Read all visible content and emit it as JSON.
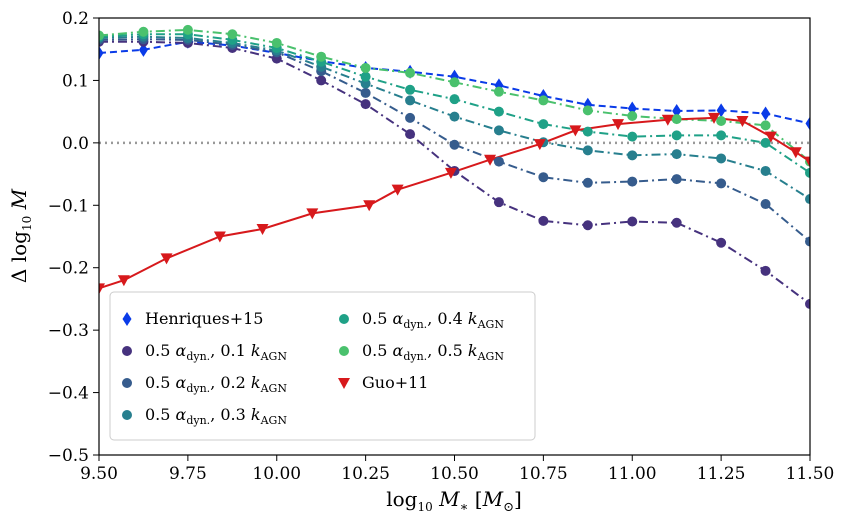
{
  "chart_data": {
    "type": "line",
    "title": "",
    "xlabel": "log₁₀ M∗ [M☉]",
    "ylabel": "Δ log₁₀ M",
    "xlim": [
      9.5,
      11.5
    ],
    "ylim": [
      -0.5,
      0.2
    ],
    "xticks": [
      9.5,
      9.75,
      10.0,
      10.25,
      10.5,
      10.75,
      11.0,
      11.25,
      11.5
    ],
    "xtick_labels": [
      "9.50",
      "9.75",
      "10.00",
      "10.25",
      "10.50",
      "10.75",
      "11.00",
      "11.25",
      "11.50"
    ],
    "yticks": [
      -0.5,
      -0.4,
      -0.3,
      -0.2,
      -0.1,
      0.0,
      0.1,
      0.2
    ],
    "ytick_labels": [
      "−0.5",
      "−0.4",
      "−0.3",
      "−0.2",
      "−0.1",
      "0.0",
      "0.1",
      "0.2"
    ],
    "reference_line": {
      "y": 0.0,
      "style": "dotted",
      "color": "#999999"
    },
    "legend": {
      "location": "lower-left",
      "columns": 2
    },
    "series": [
      {
        "name": "Henriques+15",
        "label": "Henriques+15",
        "color": "#0a3be8",
        "marker": "diamond",
        "linestyle": "dashed",
        "x": [
          9.5,
          9.625,
          9.75,
          9.875,
          10.0,
          10.125,
          10.25,
          10.375,
          10.5,
          10.625,
          10.75,
          10.875,
          11.0,
          11.125,
          11.25,
          11.375,
          11.5
        ],
        "y": [
          0.144,
          0.149,
          0.162,
          0.156,
          0.144,
          0.131,
          0.12,
          0.114,
          0.106,
          0.092,
          0.075,
          0.061,
          0.055,
          0.051,
          0.052,
          0.047,
          0.031
        ]
      },
      {
        "name": "0.5 αdyn., 0.1 kAGN",
        "label_parts": [
          "0.5 ",
          "α",
          "dyn.",
          ", 0.1 ",
          "k",
          "AGN"
        ],
        "color": "#46327e",
        "marker": "circle",
        "linestyle": "dashdot",
        "x": [
          9.5,
          9.625,
          9.75,
          9.875,
          10.0,
          10.125,
          10.25,
          10.375,
          10.5,
          10.625,
          10.75,
          10.875,
          11.0,
          11.125,
          11.25,
          11.375,
          11.5
        ],
        "y": [
          0.162,
          0.162,
          0.16,
          0.152,
          0.135,
          0.1,
          0.062,
          0.014,
          -0.045,
          -0.095,
          -0.125,
          -0.132,
          -0.126,
          -0.128,
          -0.16,
          -0.205,
          -0.258
        ]
      },
      {
        "name": "0.5 αdyn., 0.2 kAGN",
        "label_parts": [
          "0.5 ",
          "α",
          "dyn.",
          ", 0.2 ",
          "k",
          "AGN"
        ],
        "color": "#365c8d",
        "marker": "circle",
        "linestyle": "dashdot",
        "x": [
          9.5,
          9.625,
          9.75,
          9.875,
          10.0,
          10.125,
          10.25,
          10.375,
          10.5,
          10.625,
          10.75,
          10.875,
          11.0,
          11.125,
          11.25,
          11.375,
          11.5
        ],
        "y": [
          0.165,
          0.166,
          0.165,
          0.157,
          0.145,
          0.115,
          0.08,
          0.04,
          -0.003,
          -0.03,
          -0.055,
          -0.064,
          -0.062,
          -0.058,
          -0.065,
          -0.098,
          -0.158
        ]
      },
      {
        "name": "0.5 αdyn., 0.3 kAGN",
        "label_parts": [
          "0.5 ",
          "α",
          "dyn.",
          ", 0.3 ",
          "k",
          "AGN"
        ],
        "color": "#277f8e",
        "marker": "circle",
        "linestyle": "dashdot",
        "x": [
          9.5,
          9.625,
          9.75,
          9.875,
          10.0,
          10.125,
          10.25,
          10.375,
          10.5,
          10.625,
          10.75,
          10.875,
          11.0,
          11.125,
          11.25,
          11.375,
          11.5
        ],
        "y": [
          0.168,
          0.17,
          0.168,
          0.16,
          0.148,
          0.122,
          0.095,
          0.068,
          0.042,
          0.02,
          0.001,
          -0.012,
          -0.02,
          -0.018,
          -0.025,
          -0.045,
          -0.09
        ]
      },
      {
        "name": "0.5 αdyn., 0.4 kAGN",
        "label_parts": [
          "0.5 ",
          "α",
          "dyn.",
          ", 0.4 ",
          "k",
          "AGN"
        ],
        "color": "#1fa187",
        "marker": "circle",
        "linestyle": "dashdot",
        "x": [
          9.5,
          9.625,
          9.75,
          9.875,
          10.0,
          10.125,
          10.25,
          10.375,
          10.5,
          10.625,
          10.75,
          10.875,
          11.0,
          11.125,
          11.25,
          11.375,
          11.5
        ],
        "y": [
          0.17,
          0.174,
          0.174,
          0.165,
          0.152,
          0.13,
          0.106,
          0.085,
          0.07,
          0.05,
          0.03,
          0.018,
          0.01,
          0.012,
          0.012,
          0.0,
          -0.048
        ]
      },
      {
        "name": "0.5 αdyn., 0.5 kAGN",
        "label_parts": [
          "0.5 ",
          "α",
          "dyn.",
          ", 0.5 ",
          "k",
          "AGN"
        ],
        "color": "#4ac16d",
        "marker": "circle",
        "linestyle": "dashdot",
        "x": [
          9.5,
          9.625,
          9.75,
          9.875,
          10.0,
          10.125,
          10.25,
          10.375,
          10.5,
          10.625,
          10.75,
          10.875,
          11.0,
          11.125,
          11.25,
          11.375,
          11.5
        ],
        "y": [
          0.172,
          0.178,
          0.181,
          0.174,
          0.16,
          0.138,
          0.12,
          0.112,
          0.097,
          0.082,
          0.068,
          0.052,
          0.043,
          0.038,
          0.035,
          0.028,
          -0.03
        ]
      },
      {
        "name": "Guo+11",
        "label": "Guo+11",
        "color": "#d7191c",
        "marker": "triangle-down",
        "linestyle": "solid",
        "x": [
          9.5,
          9.57,
          9.69,
          9.84,
          9.96,
          10.1,
          10.26,
          10.34,
          10.49,
          10.6,
          10.74,
          10.84,
          10.96,
          11.1,
          11.23,
          11.31,
          11.39,
          11.46,
          11.5
        ],
        "y": [
          -0.233,
          -0.22,
          -0.185,
          -0.15,
          -0.138,
          -0.113,
          -0.1,
          -0.075,
          -0.048,
          -0.027,
          -0.002,
          0.02,
          0.03,
          0.037,
          0.04,
          0.035,
          0.01,
          -0.015,
          -0.03
        ]
      }
    ]
  }
}
